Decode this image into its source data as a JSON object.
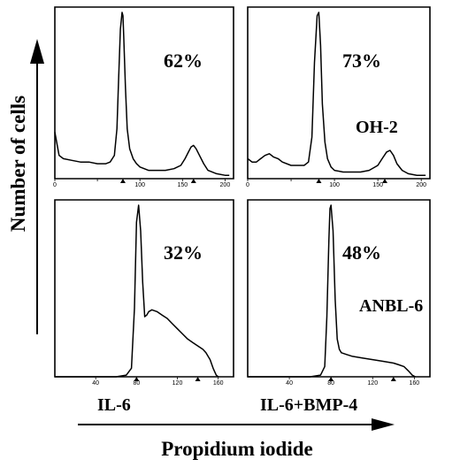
{
  "chart_data": {
    "type": "line",
    "xlabel": "Propidium iodide",
    "ylabel": "Number of cells",
    "panels": [
      {
        "row": 0,
        "col": 0,
        "percent": "62%",
        "cell_line": "",
        "condition": "",
        "x_ticks": [
          0,
          50,
          100,
          150,
          200
        ],
        "x_tick_labels": [
          "0",
          "",
          "100",
          "150",
          "200"
        ],
        "xlim": [
          0,
          210
        ],
        "ylim": [
          0,
          100
        ],
        "markers": [
          80,
          163
        ],
        "x": [
          0,
          5,
          10,
          20,
          30,
          40,
          50,
          60,
          65,
          70,
          73,
          75,
          77,
          79,
          80,
          81,
          83,
          85,
          88,
          92,
          96,
          100,
          110,
          120,
          130,
          140,
          148,
          153,
          157,
          160,
          163,
          166,
          170,
          175,
          180,
          190,
          200,
          205
        ],
        "y": [
          28,
          14,
          12,
          11,
          10,
          10,
          9,
          9,
          10,
          14,
          30,
          60,
          90,
          100,
          98,
          85,
          55,
          30,
          18,
          12,
          9,
          7,
          5,
          5,
          5,
          6,
          8,
          12,
          16,
          19,
          20,
          18,
          14,
          9,
          5,
          3,
          2,
          2
        ]
      },
      {
        "row": 0,
        "col": 1,
        "percent": "73%",
        "cell_line": "OH-2",
        "condition": "",
        "x_ticks": [
          0,
          50,
          100,
          150,
          200
        ],
        "x_tick_labels": [
          "0",
          "",
          "100",
          "150",
          "200"
        ],
        "xlim": [
          0,
          210
        ],
        "ylim": [
          0,
          100
        ],
        "markers": [
          82,
          158
        ],
        "x": [
          0,
          5,
          10,
          15,
          20,
          25,
          30,
          35,
          40,
          50,
          60,
          65,
          70,
          74,
          77,
          80,
          82,
          84,
          86,
          89,
          92,
          96,
          100,
          110,
          120,
          130,
          140,
          150,
          155,
          160,
          164,
          168,
          172,
          178,
          185,
          195,
          205
        ],
        "y": [
          12,
          10,
          10,
          12,
          14,
          15,
          13,
          12,
          10,
          8,
          8,
          8,
          10,
          25,
          70,
          98,
          100,
          80,
          45,
          22,
          12,
          7,
          5,
          4,
          4,
          4,
          5,
          8,
          12,
          16,
          17,
          14,
          9,
          5,
          3,
          2,
          2
        ]
      },
      {
        "row": 1,
        "col": 0,
        "percent": "32%",
        "cell_line": "",
        "condition": "IL-6",
        "x_ticks": [
          40,
          80,
          120,
          160
        ],
        "x_tick_labels": [
          "40",
          "80",
          "120",
          "160"
        ],
        "xlim": [
          0,
          175
        ],
        "ylim": [
          0,
          100
        ],
        "markers": [
          80,
          140
        ],
        "x": [
          0,
          40,
          60,
          70,
          75,
          78,
          80,
          82,
          84,
          86,
          88,
          90,
          92,
          95,
          100,
          105,
          110,
          115,
          120,
          125,
          130,
          135,
          140,
          145,
          148,
          152,
          155,
          158,
          160
        ],
        "y": [
          0,
          0,
          0,
          1,
          5,
          40,
          90,
          100,
          85,
          55,
          35,
          36,
          38,
          39,
          38,
          36,
          34,
          31,
          28,
          25,
          22,
          20,
          18,
          16,
          14,
          10,
          5,
          1,
          0
        ]
      },
      {
        "row": 1,
        "col": 1,
        "percent": "48%",
        "cell_line": "ANBL-6",
        "condition": "IL-6+BMP-4",
        "x_ticks": [
          40,
          80,
          120,
          160
        ],
        "x_tick_labels": [
          "40",
          "80",
          "120",
          "160"
        ],
        "xlim": [
          0,
          175
        ],
        "ylim": [
          0,
          100
        ],
        "markers": [
          80,
          140
        ],
        "x": [
          0,
          40,
          60,
          70,
          74,
          76,
          78,
          79,
          80,
          82,
          84,
          86,
          88,
          90,
          95,
          100,
          110,
          120,
          130,
          140,
          145,
          150,
          155,
          158,
          161
        ],
        "y": [
          0,
          0,
          0,
          1,
          6,
          35,
          80,
          98,
          100,
          85,
          45,
          22,
          16,
          14,
          13,
          12,
          11,
          10,
          9,
          8,
          7,
          6,
          3,
          1,
          0
        ]
      }
    ],
    "grid": false,
    "legend": "none"
  }
}
